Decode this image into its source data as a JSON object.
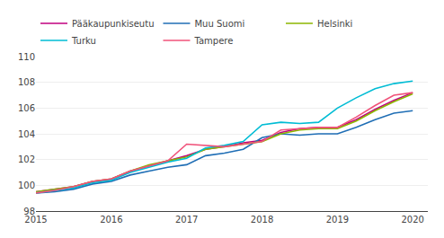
{
  "chart_data": {
    "type": "line",
    "x": [
      2015.0,
      2015.25,
      2015.5,
      2015.75,
      2016.0,
      2016.25,
      2016.5,
      2016.75,
      2017.0,
      2017.25,
      2017.5,
      2017.75,
      2018.0,
      2018.25,
      2018.5,
      2018.75,
      2019.0,
      2019.25,
      2019.5,
      2019.75,
      2020.0
    ],
    "series": [
      {
        "name": "Pääkaupunkiseutu",
        "color": "#c0007f",
        "values": [
          99.5,
          99.7,
          99.9,
          100.3,
          100.5,
          101.1,
          101.5,
          101.9,
          102.3,
          102.8,
          103.0,
          103.3,
          103.5,
          104.1,
          104.4,
          104.5,
          104.5,
          105.1,
          105.9,
          106.6,
          107.2
        ]
      },
      {
        "name": "Muu Suomi",
        "color": "#1f6eb5",
        "values": [
          99.4,
          99.5,
          99.7,
          100.1,
          100.3,
          100.8,
          101.1,
          101.4,
          101.6,
          102.3,
          102.5,
          102.8,
          103.7,
          104.0,
          103.9,
          104.0,
          104.0,
          104.5,
          105.1,
          105.6,
          105.8
        ]
      },
      {
        "name": "Helsinki",
        "color": "#8db600",
        "values": [
          99.5,
          99.7,
          99.9,
          100.3,
          100.5,
          101.1,
          101.6,
          101.9,
          102.2,
          102.8,
          103.0,
          103.2,
          103.4,
          104.0,
          104.3,
          104.4,
          104.4,
          105.0,
          105.8,
          106.5,
          107.1
        ]
      },
      {
        "name": "Turku",
        "color": "#00bcd4",
        "values": [
          99.4,
          99.6,
          99.8,
          100.2,
          100.4,
          101.0,
          101.4,
          101.8,
          102.1,
          102.9,
          103.1,
          103.4,
          104.7,
          104.9,
          104.8,
          104.9,
          106.0,
          106.8,
          107.5,
          107.9,
          108.1
        ]
      },
      {
        "name": "Tampere",
        "color": "#f0527a",
        "values": [
          99.4,
          99.6,
          99.9,
          100.3,
          100.5,
          101.1,
          101.5,
          101.9,
          103.2,
          103.1,
          103.0,
          103.2,
          103.4,
          104.3,
          104.4,
          104.5,
          104.5,
          105.3,
          106.2,
          107.0,
          107.2
        ]
      }
    ],
    "xlim": [
      2015.0,
      2020.2
    ],
    "xticks": [
      2015,
      2016,
      2017,
      2018,
      2019,
      2020
    ],
    "ylim": [
      98,
      110
    ],
    "yticks": [
      98,
      100,
      102,
      104,
      106,
      108,
      110
    ],
    "grid": true,
    "legend": "upper left"
  }
}
